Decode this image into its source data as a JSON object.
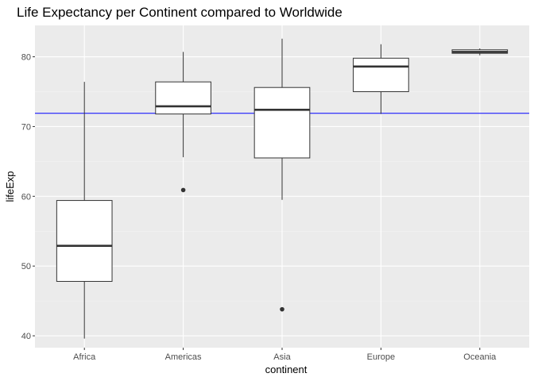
{
  "chart_data": {
    "type": "boxplot",
    "title": "Life Expectancy per Continent compared to Worldwide",
    "xlabel": "continent",
    "ylabel": "lifeExp",
    "ylim": [
      38.3,
      84.5
    ],
    "yticks": [
      40,
      50,
      60,
      70,
      80
    ],
    "grid": true,
    "reference_line": {
      "y": 71.9,
      "color": "#0000ff"
    },
    "categories": [
      "Africa",
      "Americas",
      "Asia",
      "Europe",
      "Oceania"
    ],
    "boxes": [
      {
        "category": "Africa",
        "whisker_low": 39.6,
        "q1": 47.8,
        "median": 52.9,
        "q3": 59.4,
        "whisker_high": 76.4,
        "outliers": []
      },
      {
        "category": "Americas",
        "whisker_low": 65.6,
        "q1": 71.8,
        "median": 72.9,
        "q3": 76.4,
        "whisker_high": 80.7,
        "outliers": [
          60.9
        ]
      },
      {
        "category": "Asia",
        "whisker_low": 59.5,
        "q1": 65.5,
        "median": 72.4,
        "q3": 75.6,
        "whisker_high": 82.6,
        "outliers": [
          43.8
        ]
      },
      {
        "category": "Europe",
        "whisker_low": 71.8,
        "q1": 75.0,
        "median": 78.6,
        "q3": 79.8,
        "whisker_high": 81.8,
        "outliers": []
      },
      {
        "category": "Oceania",
        "whisker_low": 80.2,
        "q1": 80.5,
        "median": 80.7,
        "q3": 81.0,
        "whisker_high": 81.2,
        "outliers": []
      }
    ]
  }
}
